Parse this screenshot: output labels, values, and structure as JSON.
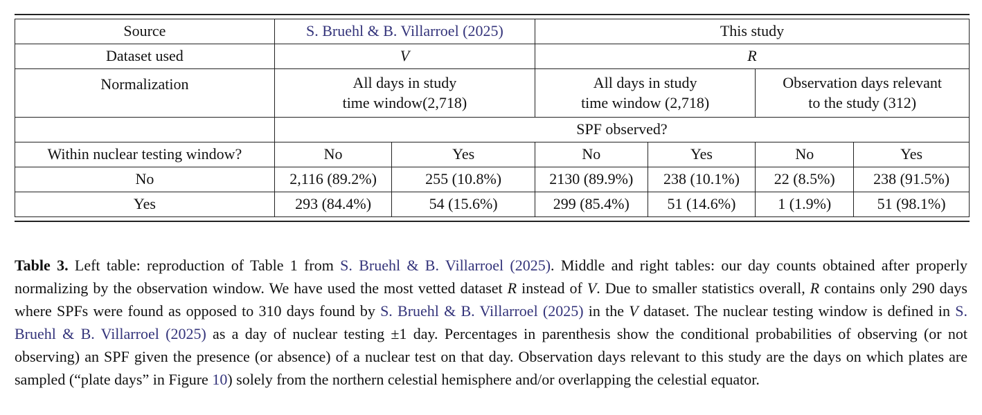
{
  "colors": {
    "link": "#33337a",
    "border": "#222222",
    "text": "#111111"
  },
  "table": {
    "source": {
      "label": "Source",
      "bruehl": "S. Bruehl & B. Villarroel (2025)",
      "this_study": "This study"
    },
    "dataset": {
      "label": "Dataset used",
      "bruehl": "V",
      "this_study": "R"
    },
    "normalization": {
      "label": "Normalization",
      "bruehl": "All days in study\ntime window(2,718)",
      "mid": "All days in study\ntime window (2,718)",
      "right": "Observation days relevant\nto the study (312)"
    },
    "spf_observed": "SPF observed?",
    "window_label": "Within nuclear testing window?",
    "col_headers": [
      "No",
      "Yes",
      "No",
      "Yes",
      "No",
      "Yes"
    ],
    "data_rows": [
      {
        "label": "No",
        "cells": [
          "2,116 (89.2%)",
          "255 (10.8%)",
          "2130 (89.9%)",
          "238 (10.1%)",
          "22 (8.5%)",
          "238 (91.5%)"
        ]
      },
      {
        "label": "Yes",
        "cells": [
          "293 (84.4%)",
          "54 (15.6%)",
          "299 (85.4%)",
          "51 (14.6%)",
          "1 (1.9%)",
          "51 (98.1%)"
        ]
      }
    ]
  },
  "caption": {
    "segments": [
      {
        "style": "bold",
        "text": "Table 3."
      },
      {
        "style": "plain",
        "text": "  Left table: reproduction of Table 1 from "
      },
      {
        "style": "link",
        "text": "S. Bruehl & B. Villarroel (2025)"
      },
      {
        "style": "plain",
        "text": ". Middle and right tables: our day counts obtained after properly normalizing by the observation window. We have used the most vetted dataset "
      },
      {
        "style": "italic",
        "text": "R"
      },
      {
        "style": "plain",
        "text": " instead of "
      },
      {
        "style": "italic",
        "text": "V"
      },
      {
        "style": "plain",
        "text": ". Due to smaller statistics overall, "
      },
      {
        "style": "italic",
        "text": "R"
      },
      {
        "style": "plain",
        "text": " contains only 290 days where SPFs were found as opposed to 310 days found by "
      },
      {
        "style": "link",
        "text": "S. Bruehl & B. Villarroel (2025)"
      },
      {
        "style": "plain",
        "text": " in the "
      },
      {
        "style": "italic",
        "text": "V"
      },
      {
        "style": "plain",
        "text": " dataset. The nuclear testing window is defined in "
      },
      {
        "style": "link",
        "text": "S. Bruehl & B. Villarroel (2025)"
      },
      {
        "style": "plain",
        "text": " as a day of nuclear testing ±1 day. Percentages in parenthesis show the conditional probabilities of observing (or not observing) an SPF given the presence (or absence) of a nuclear test on that day. Observation days relevant to this study are the days on which plates are sampled (“plate days” in Figure "
      },
      {
        "style": "link",
        "text": "10"
      },
      {
        "style": "plain",
        "text": ") solely from the northern celestial hemisphere and/or overlapping the celestial equator."
      }
    ]
  }
}
